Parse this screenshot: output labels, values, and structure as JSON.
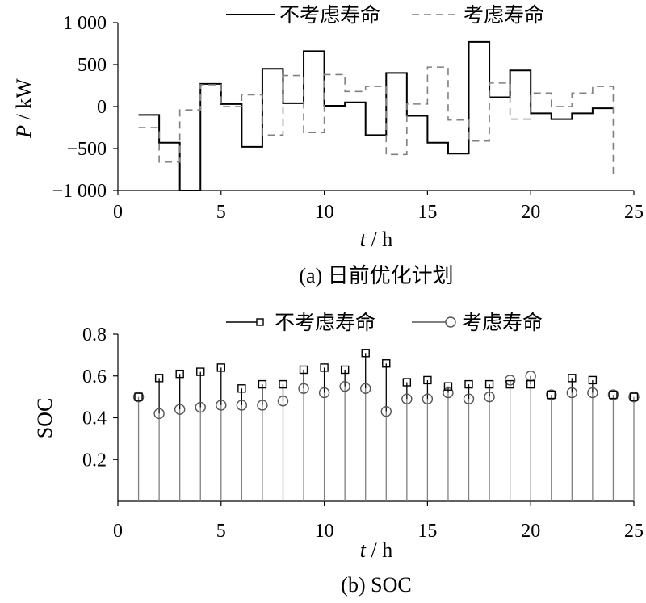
{
  "chart_data": [
    {
      "type": "line",
      "step": true,
      "caption": "(a)  日前优化计划",
      "xlabel_italic": "t",
      "xlabel_unit": " / h",
      "ylabel_italic": "P",
      "ylabel_unit": " / kW",
      "xlim": [
        0,
        25
      ],
      "ylim": [
        -1000,
        1000
      ],
      "xticks": [
        0,
        5,
        10,
        15,
        20,
        25
      ],
      "yticks": [
        1000,
        500,
        0,
        -500,
        -1000
      ],
      "ytick_labels": [
        "1 000",
        "500",
        "0",
        "−500",
        "−1 000"
      ],
      "grid": false,
      "legend_position": "top",
      "x_edges": [
        1,
        2,
        3,
        4,
        5,
        6,
        7,
        8,
        9,
        10,
        11,
        12,
        13,
        14,
        15,
        16,
        17,
        18,
        19,
        20,
        21,
        22,
        23,
        24
      ],
      "series": [
        {
          "name": "不考虑寿命",
          "style": "solid",
          "color": "#000000",
          "values": [
            -100,
            -430,
            -1000,
            270,
            30,
            -480,
            450,
            40,
            660,
            10,
            50,
            -340,
            400,
            -110,
            -430,
            -560,
            770,
            110,
            430,
            -80,
            -150,
            -80,
            -20
          ]
        },
        {
          "name": "考虑寿命",
          "style": "dashed",
          "color": "#808080",
          "values": [
            -250,
            -660,
            -40,
            260,
            0,
            140,
            -340,
            370,
            -310,
            380,
            180,
            240,
            -570,
            30,
            470,
            -160,
            -410,
            280,
            -150,
            160,
            0,
            160,
            240
          ],
          "end_value": -800
        }
      ]
    },
    {
      "type": "stem",
      "caption": "(b)  SOC",
      "xlabel_italic": "t",
      "xlabel_unit": " / h",
      "ylabel": "SOC",
      "xlim": [
        0,
        25
      ],
      "ylim": [
        0,
        0.8
      ],
      "xticks": [
        0,
        5,
        10,
        15,
        20,
        25
      ],
      "yticks": [
        0.8,
        0.6,
        0.4,
        0.2
      ],
      "ytick_labels": [
        "0.8",
        "0.6",
        "0.4",
        "0.2"
      ],
      "grid": false,
      "legend_position": "top",
      "x": [
        1,
        2,
        3,
        4,
        5,
        6,
        7,
        8,
        9,
        10,
        11,
        12,
        13,
        14,
        15,
        16,
        17,
        18,
        19,
        20,
        21,
        22,
        23,
        24,
        25
      ],
      "series": [
        {
          "name": "不考虑寿命",
          "marker": "square",
          "color": "#000000",
          "values": [
            0.5,
            0.59,
            0.61,
            0.62,
            0.64,
            0.54,
            0.56,
            0.56,
            0.63,
            0.64,
            0.63,
            0.71,
            0.66,
            0.57,
            0.58,
            0.55,
            0.56,
            0.56,
            0.56,
            0.56,
            0.51,
            0.59,
            0.58,
            0.51,
            0.5
          ]
        },
        {
          "name": "考虑寿命",
          "marker": "circle",
          "color": "#555555",
          "values": [
            0.5,
            0.42,
            0.44,
            0.45,
            0.46,
            0.46,
            0.46,
            0.48,
            0.54,
            0.52,
            0.55,
            0.54,
            0.43,
            0.49,
            0.49,
            0.52,
            0.49,
            0.5,
            0.58,
            0.6,
            0.51,
            0.52,
            0.52,
            0.51,
            0.5
          ]
        }
      ]
    }
  ]
}
